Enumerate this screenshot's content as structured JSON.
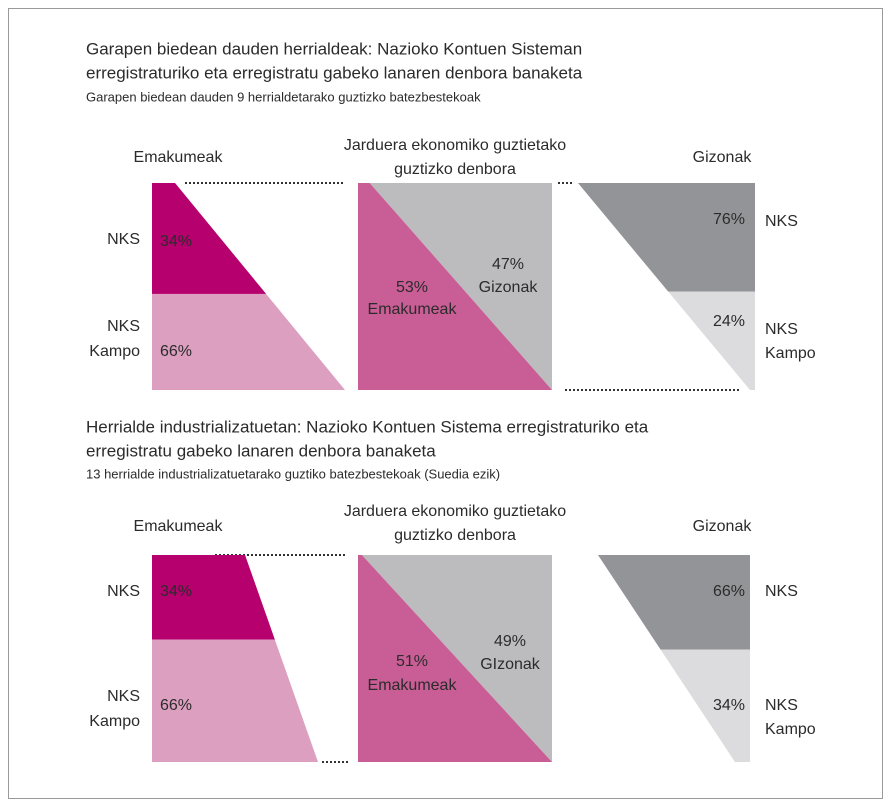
{
  "sections": [
    {
      "title_lines": [
        "Garapen biedean dauden herrialdeak: Nazioko Kontuen Sisteman",
        "erregistraturiko eta erregistratu gabeko lanaren denbora banaketa"
      ],
      "subtitle": "Garapen biedean dauden 9 herrialdetarako guztizko batezbestekoak",
      "women": {
        "header": "Emakumeak",
        "parts": [
          {
            "label": [
              "NKS"
            ],
            "value": 34,
            "value_label": "34%"
          },
          {
            "label": [
              "NKS",
              "Kampo"
            ],
            "value": 66,
            "value_label": "66%"
          }
        ]
      },
      "total": {
        "header_lines": [
          "Jarduera ekonomiko guztietako",
          "guztizko denbora"
        ],
        "women": {
          "value": 53,
          "value_label": "53%",
          "label": "Emakumeak"
        },
        "men": {
          "value": 47,
          "value_label": "47%",
          "label": "Gizonak"
        }
      },
      "men": {
        "header": "Gizonak",
        "parts": [
          {
            "label": [
              "NKS"
            ],
            "value": 76,
            "value_label": "76%"
          },
          {
            "label": [
              "NKS",
              "Kampo"
            ],
            "value": 24,
            "value_label": "24%"
          }
        ]
      }
    },
    {
      "title_lines": [
        "Herrialde industrializatuetan: Nazioko Kontuen Sistema erregistraturiko eta",
        "erregistratu gabeko lanaren denbora banaketa"
      ],
      "subtitle": "13 herrialde industrializatuetarako guztiko batezbestekoak (Suedia ezik)",
      "women": {
        "header": "Emakumeak",
        "parts": [
          {
            "label": [
              "NKS"
            ],
            "value": 34,
            "value_label": "34%"
          },
          {
            "label": [
              "NKS",
              "Kampo"
            ],
            "value": 66,
            "value_label": "66%"
          }
        ]
      },
      "total": {
        "header_lines": [
          "Jarduera ekonomiko guztietako",
          "guztizko denbora"
        ],
        "women": {
          "value": 51,
          "value_label": "51%",
          "label": "Emakumeak"
        },
        "men": {
          "value": 49,
          "value_label": "49%",
          "label": "GIzonak"
        }
      },
      "men": {
        "header": "Gizonak",
        "parts": [
          {
            "label": [
              "NKS"
            ],
            "value": 66,
            "value_label": "66%"
          },
          {
            "label": [
              "NKS",
              "Kampo"
            ],
            "value": 34,
            "value_label": "34%"
          }
        ]
      }
    }
  ]
}
